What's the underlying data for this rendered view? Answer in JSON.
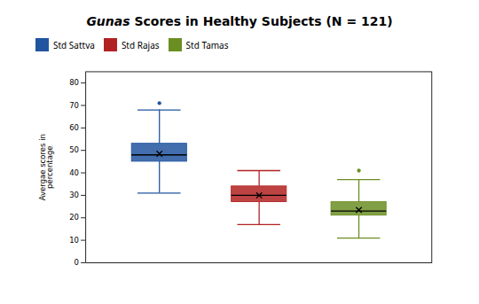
{
  "chart_data": {
    "type": "box",
    "title": "Gunas Scores in Healthy Subjects (N = 121)",
    "ylabel": "Avergae scores in\npercentage",
    "ylim": [
      0,
      85
    ],
    "yticks": [
      0,
      10,
      20,
      30,
      40,
      50,
      60,
      70,
      80
    ],
    "tick_labels": "y",
    "legend": "top",
    "marker": "x",
    "series": [
      {
        "name": "Std Sattva",
        "color": "#2155A0",
        "whislo": 31,
        "q1": 45,
        "med": 48,
        "q3": 53,
        "whishi": 68,
        "fliers": [
          71
        ],
        "mean": 48.5
      },
      {
        "name": "Std Rajas",
        "color": "#B22222",
        "whislo": 17,
        "q1": 27,
        "med": 30,
        "q3": 34,
        "whishi": 41,
        "fliers": [],
        "mean": 30
      },
      {
        "name": "Std Tamas",
        "color": "#6B8E23",
        "whislo": 11,
        "q1": 21,
        "med": 23,
        "q3": 27,
        "whishi": 37,
        "fliers": [
          41
        ],
        "mean": 23.5
      }
    ]
  }
}
